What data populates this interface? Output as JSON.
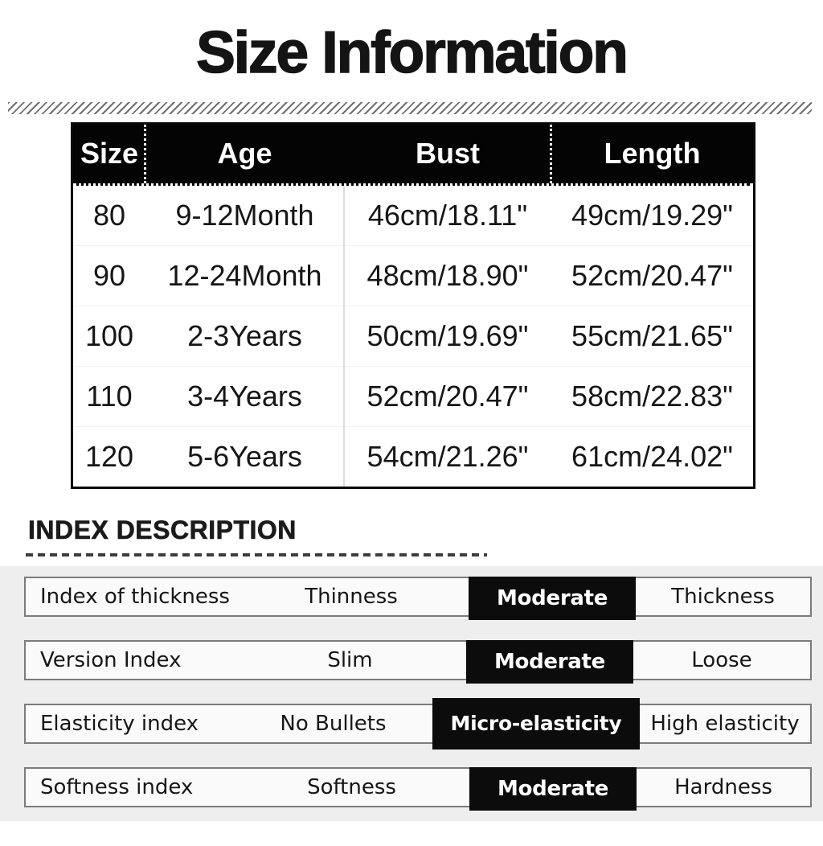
{
  "title": "Size Information",
  "size_table": {
    "headers": [
      "Size",
      "Age",
      "Bust",
      "Length"
    ],
    "rows": [
      {
        "size": "80",
        "age": "9-12Month",
        "bust": "46cm/18.11\"",
        "length": "49cm/19.29\""
      },
      {
        "size": "90",
        "age": "12-24Month",
        "bust": "48cm/18.90\"",
        "length": "52cm/20.47\""
      },
      {
        "size": "100",
        "age": "2-3Years",
        "bust": "50cm/19.69\"",
        "length": "55cm/21.65\""
      },
      {
        "size": "110",
        "age": "3-4Years",
        "bust": "52cm/20.47\"",
        "length": "58cm/22.83\""
      },
      {
        "size": "120",
        "age": "5-6Years",
        "bust": "54cm/21.26\"",
        "length": "61cm/24.02\""
      }
    ]
  },
  "index_section": {
    "heading": "INDEX DESCRIPTION",
    "rows": [
      {
        "label": "Index of thickness",
        "left": "Thinness",
        "active": "Moderate",
        "right": "Thickness"
      },
      {
        "label": "Version Index",
        "left": "Slim",
        "active": "Moderate",
        "right": "Loose"
      },
      {
        "label": "Elasticity index",
        "left": "No Bullets",
        "active": "Micro-elasticity",
        "right": "High elasticity"
      },
      {
        "label": "Softness index",
        "left": "Softness",
        "active": "Moderate",
        "right": "Hardness"
      }
    ]
  },
  "colors": {
    "table_header_bg": "#040404",
    "table_header_text": "#ffffff",
    "highlight_bg": "#0c0c0c",
    "highlight_text": "#ffffff",
    "section_bg": "#eeeeee"
  }
}
